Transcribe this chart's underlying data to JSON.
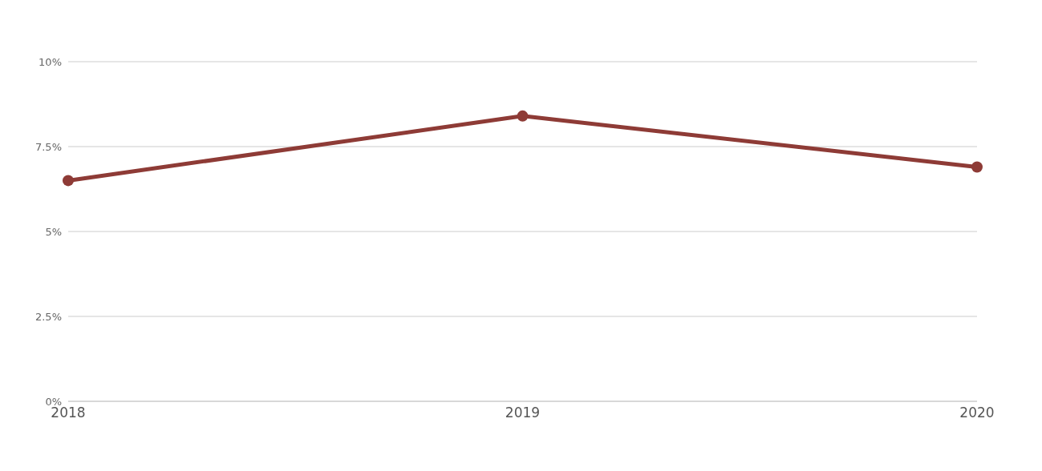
{
  "chart_data": {
    "type": "line",
    "categories": [
      "2018",
      "2019",
      "2020"
    ],
    "series": [
      {
        "color": "#8e3b36",
        "values": [
          6.5,
          8.4,
          6.9
        ]
      }
    ],
    "ylim": [
      0,
      10
    ],
    "yticks": [
      {
        "value": 0,
        "label": "0%"
      },
      {
        "value": 2.5,
        "label": "2.5%"
      },
      {
        "value": 5,
        "label": "5%"
      },
      {
        "value": 7.5,
        "label": "7.5%"
      },
      {
        "value": 10,
        "label": "10%"
      }
    ],
    "grid": "y",
    "marker": "circle",
    "line_style": "solid",
    "legend": false
  }
}
